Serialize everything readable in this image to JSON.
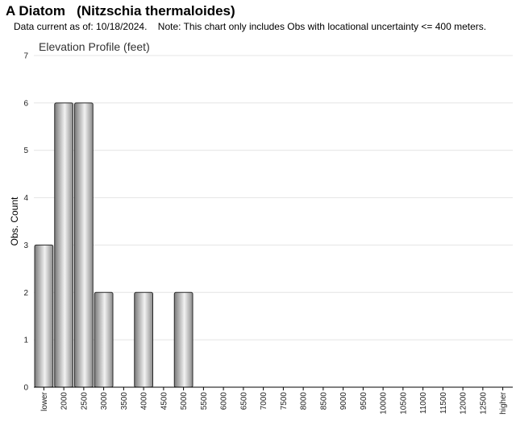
{
  "header": {
    "title": "A Diatom   (Nitzschia thermaloides)",
    "note": "Data current as of: 10/18/2024.    Note: This chart only includes Obs with locational uncertainty <= 400 meters."
  },
  "chart_data": {
    "type": "bar",
    "title": "Elevation Profile (feet)",
    "xlabel": "",
    "ylabel": "Obs. Count",
    "ylim": [
      0,
      7
    ],
    "yticks": [
      0,
      1,
      2,
      3,
      4,
      5,
      6,
      7
    ],
    "grid": true,
    "categories": [
      "lower",
      "2000",
      "2500",
      "3000",
      "3500",
      "4000",
      "4500",
      "5000",
      "5500",
      "6000",
      "6500",
      "7000",
      "7500",
      "8000",
      "8500",
      "9000",
      "9500",
      "10000",
      "10500",
      "11000",
      "11500",
      "12000",
      "12500",
      "higher"
    ],
    "values": [
      3,
      6,
      6,
      2,
      0,
      2,
      0,
      2,
      0,
      0,
      0,
      0,
      0,
      0,
      0,
      0,
      0,
      0,
      0,
      0,
      0,
      0,
      0,
      0
    ],
    "bar_color": "#b0b0b0"
  }
}
